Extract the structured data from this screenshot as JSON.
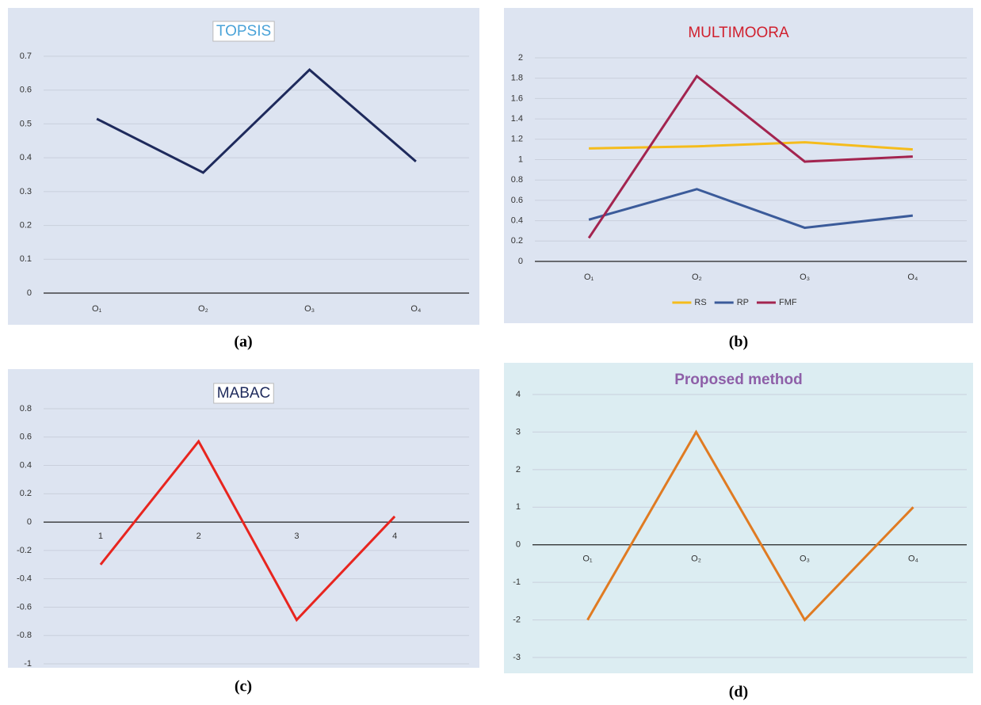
{
  "chart_data": [
    {
      "type": "line",
      "title": "TOPSIS",
      "title_color": "#4aa3d8",
      "caption": "(a)",
      "background": "#dde4f1",
      "categories": [
        "O₁",
        "O₂",
        "O₃",
        "O₄"
      ],
      "series": [
        {
          "name": "TOPSIS",
          "color": "#1e2a5c",
          "values": [
            0.515,
            0.356,
            0.66,
            0.389
          ]
        }
      ],
      "ylim": [
        0,
        0.7
      ],
      "yticks": [
        0,
        0.1,
        0.2,
        0.3,
        0.4,
        0.5,
        0.6,
        0.7
      ],
      "grid": true
    },
    {
      "type": "line",
      "title": "MULTIMOORA",
      "title_color": "#d0202e",
      "caption": "(b)",
      "background": "#dde4f1",
      "categories": [
        "O₁",
        "O₂",
        "O₃",
        "O₄"
      ],
      "series": [
        {
          "name": "RS",
          "color": "#f5bc1c",
          "values": [
            1.11,
            1.13,
            1.17,
            1.1
          ]
        },
        {
          "name": "RP",
          "color": "#3b5b9a",
          "values": [
            0.41,
            0.71,
            0.33,
            0.45
          ]
        },
        {
          "name": "FMF",
          "color": "#a3244f",
          "values": [
            0.23,
            1.82,
            0.98,
            1.03
          ]
        }
      ],
      "ylim": [
        0,
        2
      ],
      "yticks": [
        0,
        0.2,
        0.4,
        0.6,
        0.8,
        1,
        1.2,
        1.4,
        1.6,
        1.8,
        2
      ],
      "grid": true,
      "legend": "bottom"
    },
    {
      "type": "line",
      "title": "MABAC",
      "title_color": "#1e2a5c",
      "caption": "(c)",
      "background": "#dde4f1",
      "categories": [
        "1",
        "2",
        "3",
        "4"
      ],
      "series": [
        {
          "name": "MABAC",
          "color": "#e8251f",
          "values": [
            -0.3,
            0.57,
            -0.69,
            0.04
          ]
        }
      ],
      "ylim": [
        -1,
        0.8
      ],
      "yticks": [
        -1,
        -0.8,
        -0.6,
        -0.4,
        -0.2,
        0,
        0.2,
        0.4,
        0.6,
        0.8
      ],
      "grid": true
    },
    {
      "type": "line",
      "title": "Proposed method",
      "title_color": "#8e5fa8",
      "caption": "(d)",
      "background": "#dcedf2",
      "categories": [
        "O₁",
        "O₂",
        "O₃",
        "O₄"
      ],
      "series": [
        {
          "name": "Proposed method",
          "color": "#e07b22",
          "values": [
            -2,
            3,
            -2,
            1
          ]
        }
      ],
      "ylim": [
        -3,
        4
      ],
      "yticks": [
        -3,
        -2,
        -1,
        0,
        1,
        2,
        3,
        4
      ],
      "grid": true
    }
  ]
}
